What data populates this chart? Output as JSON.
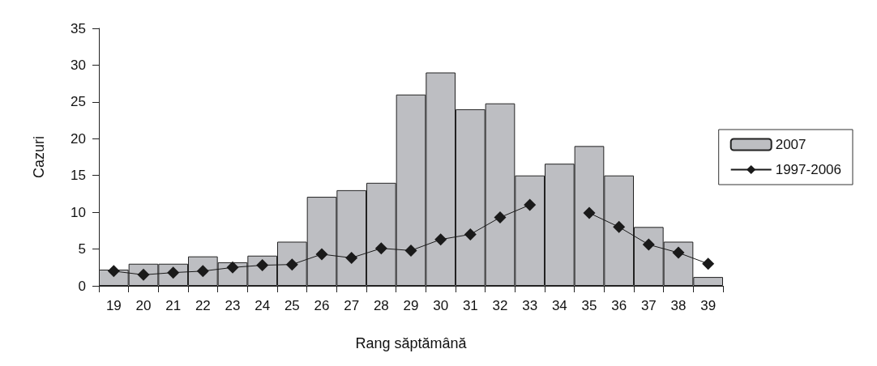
{
  "chart_data": {
    "type": "bar",
    "xlabel": "Rang săptămână",
    "ylabel": "Cazuri",
    "categories": [
      "19",
      "20",
      "21",
      "22",
      "23",
      "24",
      "25",
      "26",
      "27",
      "28",
      "29",
      "30",
      "31",
      "32",
      "33",
      "34",
      "35",
      "36",
      "37",
      "38",
      "39"
    ],
    "series": [
      {
        "name": "2007",
        "color": "#bdbec2",
        "values": [
          2.2,
          3,
          3,
          4,
          3.2,
          4.1,
          6,
          12.1,
          13,
          14,
          26,
          29,
          24,
          24.8,
          15,
          16.6,
          19,
          15,
          8,
          6,
          1.2
        ]
      },
      {
        "name": "1997-2006",
        "type": "line",
        "color": "#1a1a1a",
        "values": [
          2,
          1.5,
          1.8,
          2,
          2.5,
          2.8,
          2.9,
          4.3,
          3.8,
          5.1,
          4.8,
          6.3,
          7,
          9.3,
          11,
          null,
          9.9,
          8,
          5.6,
          4.5,
          3
        ]
      }
    ],
    "ylim": [
      0,
      35
    ],
    "yticks": [
      0,
      5,
      10,
      15,
      20,
      25,
      30,
      35
    ],
    "grid": false,
    "legend": "right",
    "marker": "diamond",
    "line_style": "solid"
  }
}
